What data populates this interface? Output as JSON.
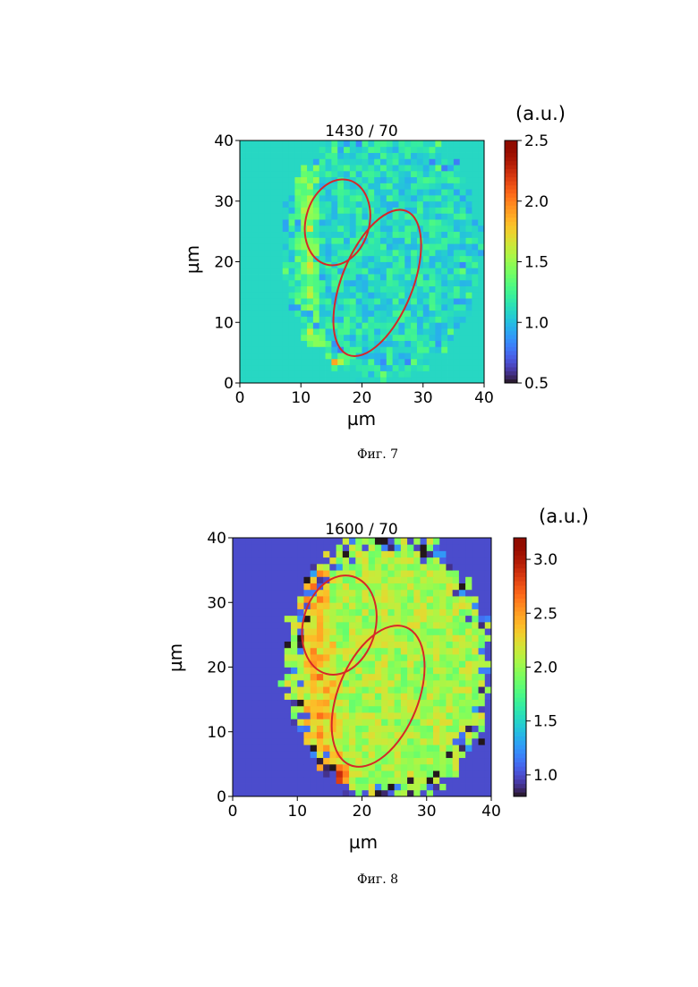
{
  "figures": [
    {
      "caption": "Фиг. 7",
      "colorbar_unit": "(a.u.)"
    },
    {
      "caption": "Фиг. 8",
      "colorbar_unit": "(a.u.)"
    }
  ],
  "chart_data": [
    {
      "type": "heatmap",
      "title": "1430 / 70",
      "xlabel": "µm",
      "ylabel": "µm",
      "xlim": [
        0,
        40
      ],
      "ylim": [
        0,
        40
      ],
      "x_ticks": [
        0,
        10,
        20,
        30,
        40
      ],
      "y_ticks": [
        0,
        10,
        20,
        30,
        40
      ],
      "x_tick_labels": [
        "0",
        "10",
        "20",
        "30",
        "40"
      ],
      "y_tick_labels": [
        "0",
        "10",
        "20",
        "30",
        "40"
      ],
      "grid_size": [
        40,
        40
      ],
      "colormap": "turbo",
      "clim": [
        0.5,
        2.5
      ],
      "colorbar_ticks": [
        0.5,
        1.0,
        1.5,
        2.0,
        2.5
      ],
      "colorbar_tick_labels": [
        "0.5",
        "1.0",
        "1.5",
        "2.0",
        "2.5"
      ],
      "background_value": 1.1,
      "cell_region": {
        "center": [
          23,
          22
        ],
        "radii": [
          16,
          21
        ],
        "value": 1.12
      },
      "bright_band": {
        "x": 11,
        "width": 2.4,
        "value": 1.55
      },
      "hotspot": {
        "x": 15,
        "y": 3,
        "value": 2.1
      },
      "annotations": [
        {
          "type": "ellipse",
          "center": [
            16,
            26.5
          ],
          "radii": [
            5.2,
            7.2
          ],
          "angle_deg": -15,
          "color": "#d62728"
        },
        {
          "type": "ellipse",
          "center": [
            22.5,
            16.5
          ],
          "radii": [
            5.8,
            12.8
          ],
          "angle_deg": -22,
          "color": "#d62728"
        }
      ]
    },
    {
      "type": "heatmap",
      "title": "1600 / 70",
      "xlabel": "µm",
      "ylabel": "µm",
      "xlim": [
        0,
        40
      ],
      "ylim": [
        0,
        40
      ],
      "x_ticks": [
        0,
        10,
        20,
        30,
        40
      ],
      "y_ticks": [
        0,
        10,
        20,
        30,
        40
      ],
      "x_tick_labels": [
        "0",
        "10",
        "20",
        "30",
        "40"
      ],
      "y_tick_labels": [
        "0",
        "10",
        "20",
        "30",
        "40"
      ],
      "grid_size": [
        40,
        40
      ],
      "colormap": "turbo",
      "clim": [
        0.8,
        3.2
      ],
      "colorbar_ticks": [
        1.0,
        1.5,
        2.0,
        2.5,
        3.0
      ],
      "colorbar_tick_labels": [
        "1.0",
        "1.5",
        "2.0",
        "2.5",
        "3.0"
      ],
      "background_value": 1.0,
      "cell_region": {
        "center": [
          24,
          20
        ],
        "radii": [
          16,
          21
        ],
        "value": 2.05
      },
      "bright_band": {
        "x": 13,
        "width": 3.5,
        "value": 2.45
      },
      "hotspot": {
        "x": 16,
        "y": 3,
        "value": 3.1
      },
      "annotations": [
        {
          "type": "ellipse",
          "center": [
            16.5,
            26.5
          ],
          "radii": [
            5.6,
            7.8
          ],
          "angle_deg": -15,
          "color": "#d62728"
        },
        {
          "type": "ellipse",
          "center": [
            22.5,
            15.5
          ],
          "radii": [
            6.2,
            11.5
          ],
          "angle_deg": -22,
          "color": "#d62728"
        }
      ]
    }
  ]
}
